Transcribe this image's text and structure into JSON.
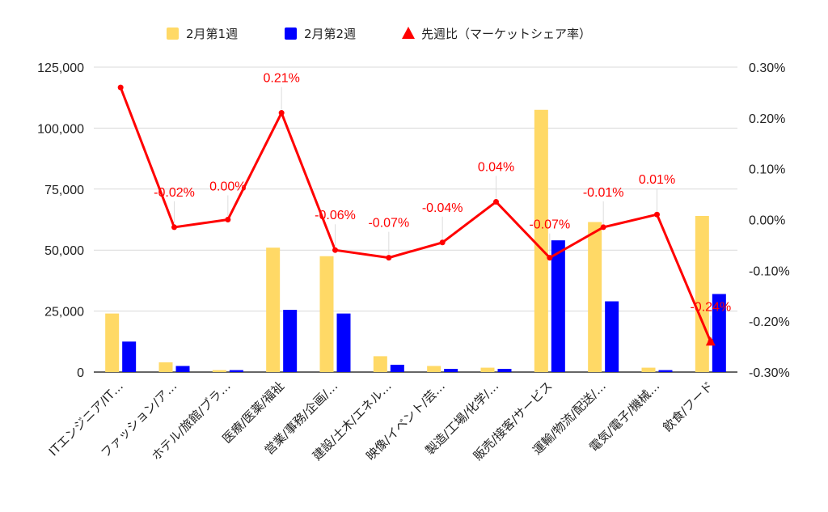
{
  "chart_data": {
    "type": "bar",
    "categories": [
      "ITエンジニア/IT…",
      "ファッション/ア…",
      "ホテル/旅館/ブラ…",
      "医療/医薬/福祉",
      "営業/事務/企画/…",
      "建設/土木/エネル…",
      "映像/イベント/芸…",
      "製造/工場/化学/…",
      "販売/接客/サービス",
      "運輸/物流/配送/…",
      "電気/電子/機械…",
      "飲食/フード"
    ],
    "series": [
      {
        "name": "2月第1週",
        "kind": "bar",
        "axis": "left",
        "color": "#ffd966",
        "values": [
          24000,
          4000,
          800,
          51000,
          47500,
          6500,
          2500,
          1800,
          107500,
          61500,
          1800,
          64000
        ]
      },
      {
        "name": "2月第2週",
        "kind": "bar",
        "axis": "left",
        "color": "#0000ff",
        "values": [
          12500,
          2500,
          800,
          25500,
          24000,
          3000,
          1300,
          1300,
          54000,
          29000,
          800,
          32000
        ]
      },
      {
        "name": "先週比（マーケットシェア率）",
        "kind": "line",
        "axis": "right",
        "color": "#ff0000",
        "values": [
          0.26,
          -0.015,
          0.0,
          0.21,
          -0.06,
          -0.075,
          -0.045,
          0.035,
          -0.075,
          -0.015,
          0.01,
          -0.24
        ],
        "labels": [
          "",
          "-0.02%",
          "0.00%",
          "0.21%",
          "-0.06%",
          "-0.07%",
          "-0.04%",
          "0.04%",
          "-0.07%",
          "-0.01%",
          "0.01%",
          "-0.24%"
        ]
      }
    ],
    "y_left": {
      "min": 0,
      "max": 125000,
      "ticks": [
        0,
        25000,
        50000,
        75000,
        100000,
        125000
      ],
      "tick_labels": [
        "0",
        "25,000",
        "50,000",
        "75,000",
        "100,000",
        "125,000"
      ]
    },
    "y_right": {
      "min": -0.3,
      "max": 0.3,
      "ticks": [
        -0.3,
        -0.2,
        -0.1,
        0.0,
        0.1,
        0.2,
        0.3
      ],
      "tick_labels": [
        "-0.30%",
        "-0.20%",
        "-0.10%",
        "0.00%",
        "0.10%",
        "0.20%",
        "0.30%"
      ]
    },
    "grid": true,
    "legend_position": "top-center"
  }
}
